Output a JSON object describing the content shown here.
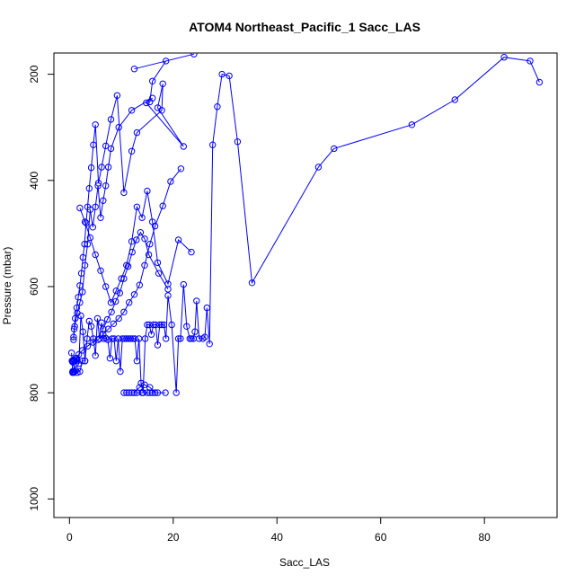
{
  "chart_data": {
    "type": "scatter",
    "title": "ATOM4 Northeast_Pacific_1 Sacc_LAS",
    "xlabel": "Sacc_LAS",
    "ylabel": "Pressure (mbar)",
    "xlim": [
      -3,
      94
    ],
    "ylim": [
      1035,
      160
    ],
    "y_reversed": true,
    "x_ticks": [
      0,
      20,
      40,
      60,
      80
    ],
    "y_ticks": [
      200,
      400,
      600,
      800,
      1000
    ],
    "grid": false,
    "color": "#0000ff",
    "marker": "open-circle",
    "connected": true,
    "series": [
      {
        "x": [
          90.6,
          88.8,
          83.8,
          74.3,
          66.0,
          51.0,
          48.0,
          35.2,
          32.4,
          30.8,
          29.4,
          28.5,
          27.6,
          27.0,
          26.5,
          26.1,
          25.7,
          25.0,
          24.5,
          24.2,
          23.9,
          23.5,
          23.2,
          22.6,
          22.0,
          21.4,
          21.0,
          20.6,
          19.7,
          19.0,
          18.6,
          18.2,
          17.8,
          17.4,
          17.0,
          16.6,
          16.2,
          15.8,
          15.4,
          15.0,
          14.6,
          14.2,
          13.8,
          13.4,
          13.0,
          12.6,
          12.2,
          11.8,
          11.4,
          11.0,
          10.6,
          10.2,
          9.8,
          9.4,
          9.0,
          8.6,
          8.2,
          7.8,
          7.4,
          7.0,
          6.6,
          6.2,
          5.8,
          5.4,
          5.0,
          4.6,
          4.2,
          3.8,
          3.4,
          3.0,
          2.6,
          2.2,
          1.8,
          1.4,
          1.0,
          0.8,
          0.6,
          0.5,
          0.4
        ],
        "y": [
          215,
          175,
          168,
          248,
          295,
          340,
          375,
          593,
          327,
          203,
          200,
          261,
          333,
          708,
          640,
          695,
          698,
          698,
          627,
          685,
          698,
          698,
          698,
          675,
          596,
          698,
          698,
          800,
          672,
          617,
          698,
          672,
          672,
          672,
          710,
          672,
          672,
          690,
          672,
          672,
          698,
          800,
          782,
          698,
          740,
          698,
          698,
          698,
          698,
          698,
          698,
          698,
          760,
          698,
          740,
          698,
          698,
          735,
          700,
          697,
          698,
          668,
          698,
          660,
          730,
          698,
          675,
          665,
          698,
          740,
          685,
          655,
          745,
          735,
          740,
          760,
          762,
          740,
          725
        ]
      },
      {
        "x": [
          12.5,
          24.0,
          18.6,
          16.0,
          15.5,
          14.8,
          22.0,
          17.0,
          18.0,
          17.8,
          13.0,
          12.0,
          10.5,
          9.2,
          8.0,
          7.0,
          6.2,
          5.6,
          5.0,
          4.6,
          4.2,
          3.8,
          3.5,
          3.2,
          2.9,
          2.6,
          2.3,
          2.0,
          1.7,
          1.4,
          1.1,
          0.9,
          0.8
        ],
        "y": [
          190,
          162,
          175,
          213,
          252,
          254,
          336,
          263,
          218,
          268,
          310,
          345,
          423,
          240,
          285,
          335,
          375,
          405,
          295,
          333,
          376,
          415,
          450,
          480,
          520,
          545,
          575,
          598,
          620,
          640,
          660,
          680,
          700
        ]
      },
      {
        "x": [
          16.0,
          12.0,
          9.5,
          8.0,
          7.5,
          7.0,
          6.5,
          6.0,
          5.5,
          5.0,
          4.5,
          4.0,
          3.5,
          3.0,
          2.5,
          2.0,
          1.5,
          1.0,
          0.8
        ],
        "y": [
          245,
          268,
          300,
          340,
          375,
          410,
          438,
          470,
          410,
          450,
          488,
          455,
          520,
          560,
          610,
          630,
          650,
          675,
          695
        ]
      },
      {
        "x": [
          21.5,
          19.5,
          18.0,
          16.5,
          15.5,
          14.5,
          13.5,
          12.5,
          11.5,
          10.5,
          9.5,
          8.5,
          7.5,
          6.5,
          5.5,
          4.5,
          3.5,
          2.5,
          1.8,
          1.2
        ],
        "y": [
          378,
          402,
          448,
          486,
          520,
          560,
          597,
          615,
          630,
          648,
          660,
          670,
          680,
          690,
          700,
          705,
          712,
          720,
          728,
          735
        ]
      },
      {
        "x": [
          23.5,
          21.0,
          19.0,
          17.0,
          16.0,
          15.0,
          14.0,
          13.0,
          12.0,
          11.0,
          10.0,
          9.0,
          8.0,
          7.0,
          6.0,
          5.0,
          4.0,
          3.0,
          2.0
        ],
        "y": [
          535,
          512,
          595,
          555,
          478,
          420,
          470,
          450,
          515,
          560,
          585,
          608,
          630,
          600,
          570,
          540,
          508,
          478,
          452
        ]
      },
      {
        "x": [
          19.0,
          17.2,
          15.3,
          14.5,
          13.7,
          12.9,
          12.1,
          11.3,
          10.5,
          9.7,
          8.9,
          8.1,
          7.3,
          6.5
        ],
        "y": [
          605,
          575,
          540,
          510,
          498,
          512,
          535,
          562,
          585,
          612,
          628,
          648,
          662,
          680
        ]
      },
      {
        "x": [
          16.5,
          15.5,
          14.5,
          13.5,
          12.5,
          11.5,
          10.5,
          11.0,
          12.0,
          13.0,
          14.0,
          15.0,
          15.5,
          16.0,
          17.0,
          18.5
        ],
        "y": [
          800,
          790,
          785,
          790,
          800,
          800,
          800,
          800,
          800,
          800,
          800,
          800,
          800,
          800,
          800,
          800
        ]
      },
      {
        "x": [
          1.5,
          1.2,
          1.0,
          0.8,
          0.7,
          0.6,
          0.5,
          0.6,
          0.8,
          1.0,
          1.2,
          1.5,
          2.0,
          2.5,
          3.0
        ],
        "y": [
          740,
          745,
          740,
          738,
          740,
          742,
          740,
          760,
          762,
          760,
          758,
          762,
          760,
          740,
          740
        ]
      }
    ]
  }
}
